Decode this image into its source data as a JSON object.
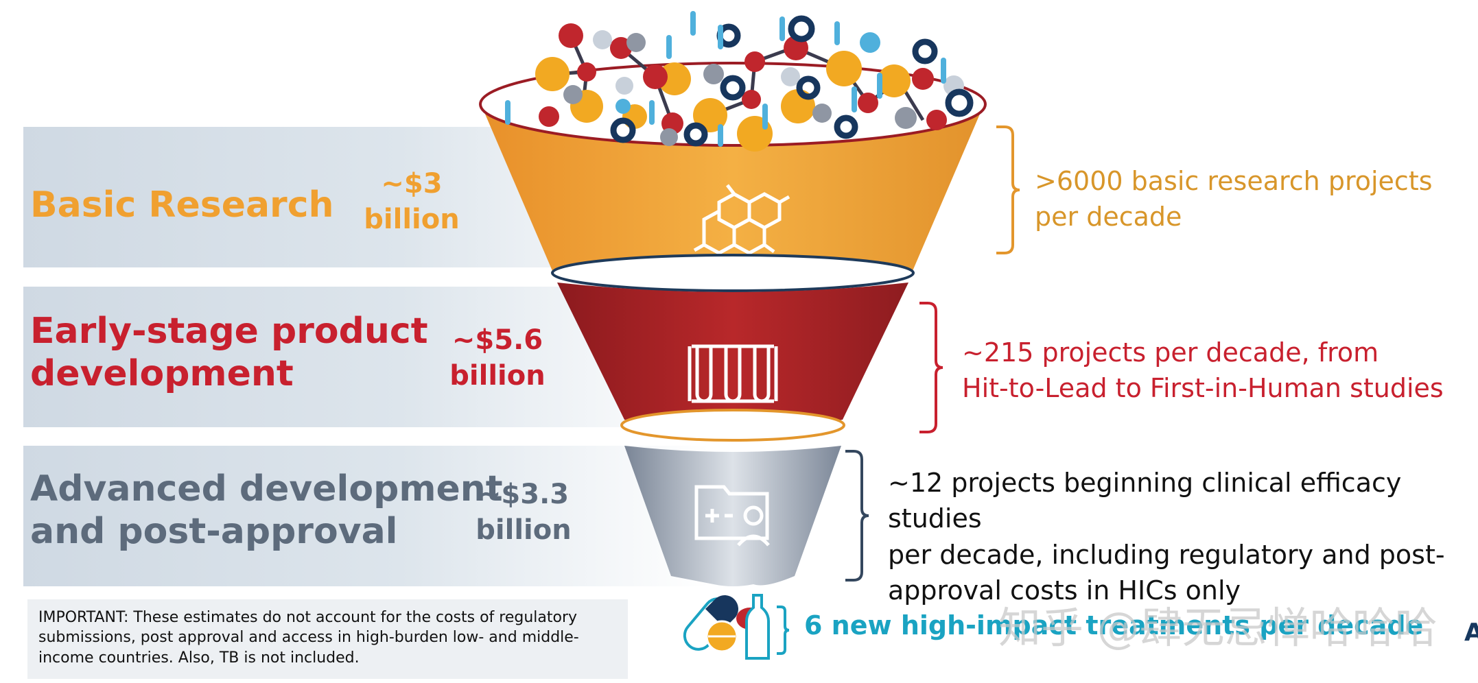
{
  "stages": [
    {
      "name_lines": [
        "Basic Research"
      ],
      "cost_lines": [
        "~$3",
        "billion"
      ],
      "desc_lines": [
        ">6000 basic research projects",
        "per decade"
      ],
      "color": "#f0a030",
      "desc_color": "#d8962a"
    },
    {
      "name_lines": [
        "Early-stage product",
        "development"
      ],
      "cost_lines": [
        "~$5.6",
        "billion"
      ],
      "desc_lines": [
        "~215 projects per decade, from",
        "Hit-to-Lead to First-in-Human studies"
      ],
      "color": "#c8202e",
      "desc_color": "#c8202e"
    },
    {
      "name_lines": [
        "Advanced development",
        "and post-approval"
      ],
      "cost_lines": [
        "~$3.3",
        "billion"
      ],
      "desc_lines": [
        "~12 projects beginning clinical efficacy studies",
        "per decade, including regulatory and post-",
        "approval costs in HICs only"
      ],
      "color": "#5d6b7c",
      "desc_color": "#111111"
    }
  ],
  "note_text": "IMPORTANT: These estimates do not account for the costs of regulatory submissions, post approval and access in high-burden low- and middle-income countries. Also, TB is not included.",
  "outcome_text": "6 new high-impact treatments per decade",
  "watermark_text": "知乎 @肆无忌惮哈哈哈",
  "edge_letter": "A",
  "icons": [
    "molecules-icon",
    "hexagon-molecule-icon",
    "test-tubes-icon",
    "patient-folder-icon",
    "pills-icon"
  ]
}
